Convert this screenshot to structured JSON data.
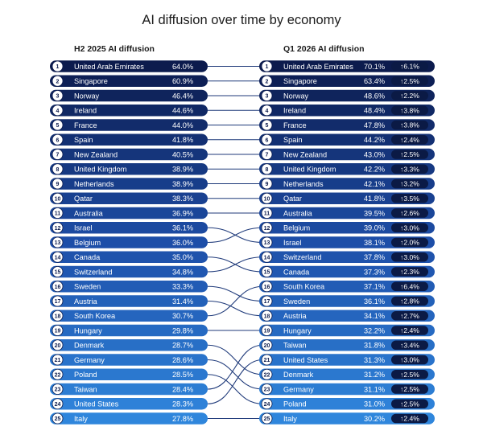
{
  "title": "AI diffusion over time by economy",
  "left_header": "H2 2025 AI diffusion",
  "right_header": "Q1 2026 AI diffusion",
  "colors": {
    "dark_navy": "#0c1b4d",
    "mid_blue": "#1d4ea8",
    "light_blue": "#2f86dc",
    "connector": "#1f3a7a",
    "change_badge": "#0b1a45"
  },
  "chart_data": {
    "type": "table",
    "title": "AI diffusion over time by economy",
    "left": {
      "header": "H2 2025 AI diffusion",
      "rows": [
        {
          "rank": "1",
          "economy": "United Arab Emirates",
          "value": "64.0%"
        },
        {
          "rank": "2",
          "economy": "Singapore",
          "value": "60.9%"
        },
        {
          "rank": "3",
          "economy": "Norway",
          "value": "46.4%"
        },
        {
          "rank": "4",
          "economy": "Ireland",
          "value": "44.6%"
        },
        {
          "rank": "5",
          "economy": "France",
          "value": "44.0%"
        },
        {
          "rank": "6",
          "economy": "Spain",
          "value": "41.8%"
        },
        {
          "rank": "7",
          "economy": "New Zealand",
          "value": "40.5%"
        },
        {
          "rank": "8",
          "economy": "United Kingdom",
          "value": "38.9%"
        },
        {
          "rank": "9",
          "economy": "Netherlands",
          "value": "38.9%"
        },
        {
          "rank": "10",
          "economy": "Qatar",
          "value": "38.3%"
        },
        {
          "rank": "11",
          "economy": "Australia",
          "value": "36.9%"
        },
        {
          "rank": "12",
          "economy": "Israel",
          "value": "36.1%"
        },
        {
          "rank": "13",
          "economy": "Belgium",
          "value": "36.0%"
        },
        {
          "rank": "14",
          "economy": "Canada",
          "value": "35.0%"
        },
        {
          "rank": "15",
          "economy": "Switzerland",
          "value": "34.8%"
        },
        {
          "rank": "16",
          "economy": "Sweden",
          "value": "33.3%"
        },
        {
          "rank": "17",
          "economy": "Austria",
          "value": "31.4%"
        },
        {
          "rank": "18",
          "economy": "South Korea",
          "value": "30.7%"
        },
        {
          "rank": "19",
          "economy": "Hungary",
          "value": "29.8%"
        },
        {
          "rank": "20",
          "economy": "Denmark",
          "value": "28.7%"
        },
        {
          "rank": "21",
          "economy": "Germany",
          "value": "28.6%"
        },
        {
          "rank": "22",
          "economy": "Poland",
          "value": "28.5%"
        },
        {
          "rank": "23",
          "economy": "Taiwan",
          "value": "28.4%"
        },
        {
          "rank": "24",
          "economy": "United States",
          "value": "28.3%"
        },
        {
          "rank": "25",
          "economy": "Italy",
          "value": "27.8%"
        }
      ]
    },
    "right": {
      "header": "Q1 2026 AI diffusion",
      "rows": [
        {
          "rank": "1",
          "economy": "United Arab Emirates",
          "value": "70.1%",
          "change": "↑6.1%"
        },
        {
          "rank": "2",
          "economy": "Singapore",
          "value": "63.4%",
          "change": "↑2.5%"
        },
        {
          "rank": "3",
          "economy": "Norway",
          "value": "48.6%",
          "change": "↑2.2%"
        },
        {
          "rank": "4",
          "economy": "Ireland",
          "value": "48.4%",
          "change": "↑3.8%"
        },
        {
          "rank": "5",
          "economy": "France",
          "value": "47.8%",
          "change": "↑3.8%"
        },
        {
          "rank": "6",
          "economy": "Spain",
          "value": "44.2%",
          "change": "↑2.4%"
        },
        {
          "rank": "7",
          "economy": "New Zealand",
          "value": "43.0%",
          "change": "↑2.5%"
        },
        {
          "rank": "8",
          "economy": "United Kingdom",
          "value": "42.2%",
          "change": "↑3.3%"
        },
        {
          "rank": "9",
          "economy": "Netherlands",
          "value": "42.1%",
          "change": "↑3.2%"
        },
        {
          "rank": "10",
          "economy": "Qatar",
          "value": "41.8%",
          "change": "↑3.5%"
        },
        {
          "rank": "11",
          "economy": "Australia",
          "value": "39.5%",
          "change": "↑2.6%"
        },
        {
          "rank": "12",
          "economy": "Belgium",
          "value": "39.0%",
          "change": "↑3.0%"
        },
        {
          "rank": "13",
          "economy": "Israel",
          "value": "38.1%",
          "change": "↑2.0%"
        },
        {
          "rank": "14",
          "economy": "Switzerland",
          "value": "37.8%",
          "change": "↑3.0%"
        },
        {
          "rank": "15",
          "economy": "Canada",
          "value": "37.3%",
          "change": "↑2.3%"
        },
        {
          "rank": "16",
          "economy": "South Korea",
          "value": "37.1%",
          "change": "↑6.4%"
        },
        {
          "rank": "17",
          "economy": "Sweden",
          "value": "36.1%",
          "change": "↑2.8%"
        },
        {
          "rank": "18",
          "economy": "Austria",
          "value": "34.1%",
          "change": "↑2.7%"
        },
        {
          "rank": "19",
          "economy": "Hungary",
          "value": "32.2%",
          "change": "↑2.4%"
        },
        {
          "rank": "20",
          "economy": "Taiwan",
          "value": "31.8%",
          "change": "↑3.4%"
        },
        {
          "rank": "21",
          "economy": "United States",
          "value": "31.3%",
          "change": "↑3.0%"
        },
        {
          "rank": "22",
          "economy": "Denmark",
          "value": "31.2%",
          "change": "↑2.5%"
        },
        {
          "rank": "23",
          "economy": "Germany",
          "value": "31.1%",
          "change": "↑2.5%"
        },
        {
          "rank": "24",
          "economy": "Poland",
          "value": "31.0%",
          "change": "↑2.5%"
        },
        {
          "rank": "25",
          "economy": "Italy",
          "value": "30.2%",
          "change": "↑2.4%"
        }
      ]
    }
  }
}
